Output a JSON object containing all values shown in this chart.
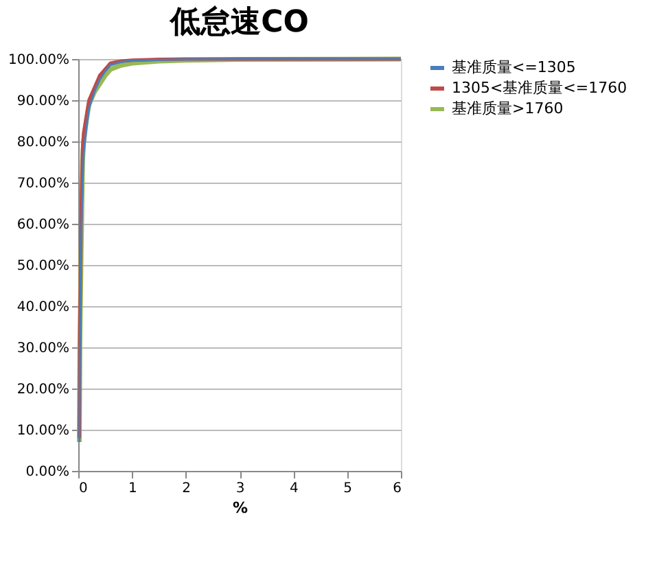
{
  "chart_data": {
    "type": "line",
    "title": "低怠速CO",
    "xlabel": "%",
    "xlim": [
      0,
      6
    ],
    "xticks": [
      0,
      1,
      2,
      3,
      4,
      5,
      6
    ],
    "ylim": [
      0,
      100
    ],
    "yticks": [
      {
        "value": 0,
        "label": "0.00%"
      },
      {
        "value": 10,
        "label": "10.00%"
      },
      {
        "value": 20,
        "label": "20.00%"
      },
      {
        "value": 30,
        "label": "30.00%"
      },
      {
        "value": 40,
        "label": "40.00%"
      },
      {
        "value": 50,
        "label": "50.00%"
      },
      {
        "value": 60,
        "label": "60.00%"
      },
      {
        "value": 70,
        "label": "70.00%"
      },
      {
        "value": 80,
        "label": "80.00%"
      },
      {
        "value": 90,
        "label": "90.00%"
      },
      {
        "value": 100,
        "label": "100.00%"
      }
    ],
    "grid": "y",
    "legend": "right",
    "marker": "none",
    "line_style": "solid",
    "series": [
      {
        "name": "基准质量<=1305",
        "color": "#4a7ebb",
        "x": [
          0.02,
          0.03,
          0.05,
          0.08,
          0.1,
          0.15,
          0.2,
          0.3,
          0.4,
          0.5,
          0.6,
          0.8,
          1,
          1.5,
          2,
          3,
          6
        ],
        "values": [
          7,
          30,
          55,
          70,
          77,
          83,
          88,
          92,
          95,
          97,
          98.5,
          99.3,
          99.6,
          99.8,
          99.9,
          100,
          100
        ]
      },
      {
        "name": "1305<基准质量<=1760",
        "color": "#be4b48",
        "x": [
          0.02,
          0.03,
          0.05,
          0.08,
          0.1,
          0.15,
          0.2,
          0.3,
          0.4,
          0.5,
          0.6,
          0.8,
          1,
          1.5,
          2,
          6
        ],
        "values": [
          8,
          35,
          60,
          78,
          82,
          86,
          90,
          93,
          96,
          97.5,
          99,
          99.5,
          99.7,
          99.9,
          100,
          100
        ]
      },
      {
        "name": "基准质量>1760",
        "color": "#98b954",
        "x": [
          0.02,
          0.03,
          0.05,
          0.08,
          0.1,
          0.15,
          0.2,
          0.3,
          0.4,
          0.5,
          0.6,
          0.8,
          1,
          1.5,
          2,
          3,
          6
        ],
        "values": [
          7,
          30,
          50,
          75,
          80,
          85,
          89,
          92,
          94,
          96,
          97.5,
          98.5,
          99,
          99.5,
          99.7,
          99.9,
          100
        ]
      }
    ]
  }
}
